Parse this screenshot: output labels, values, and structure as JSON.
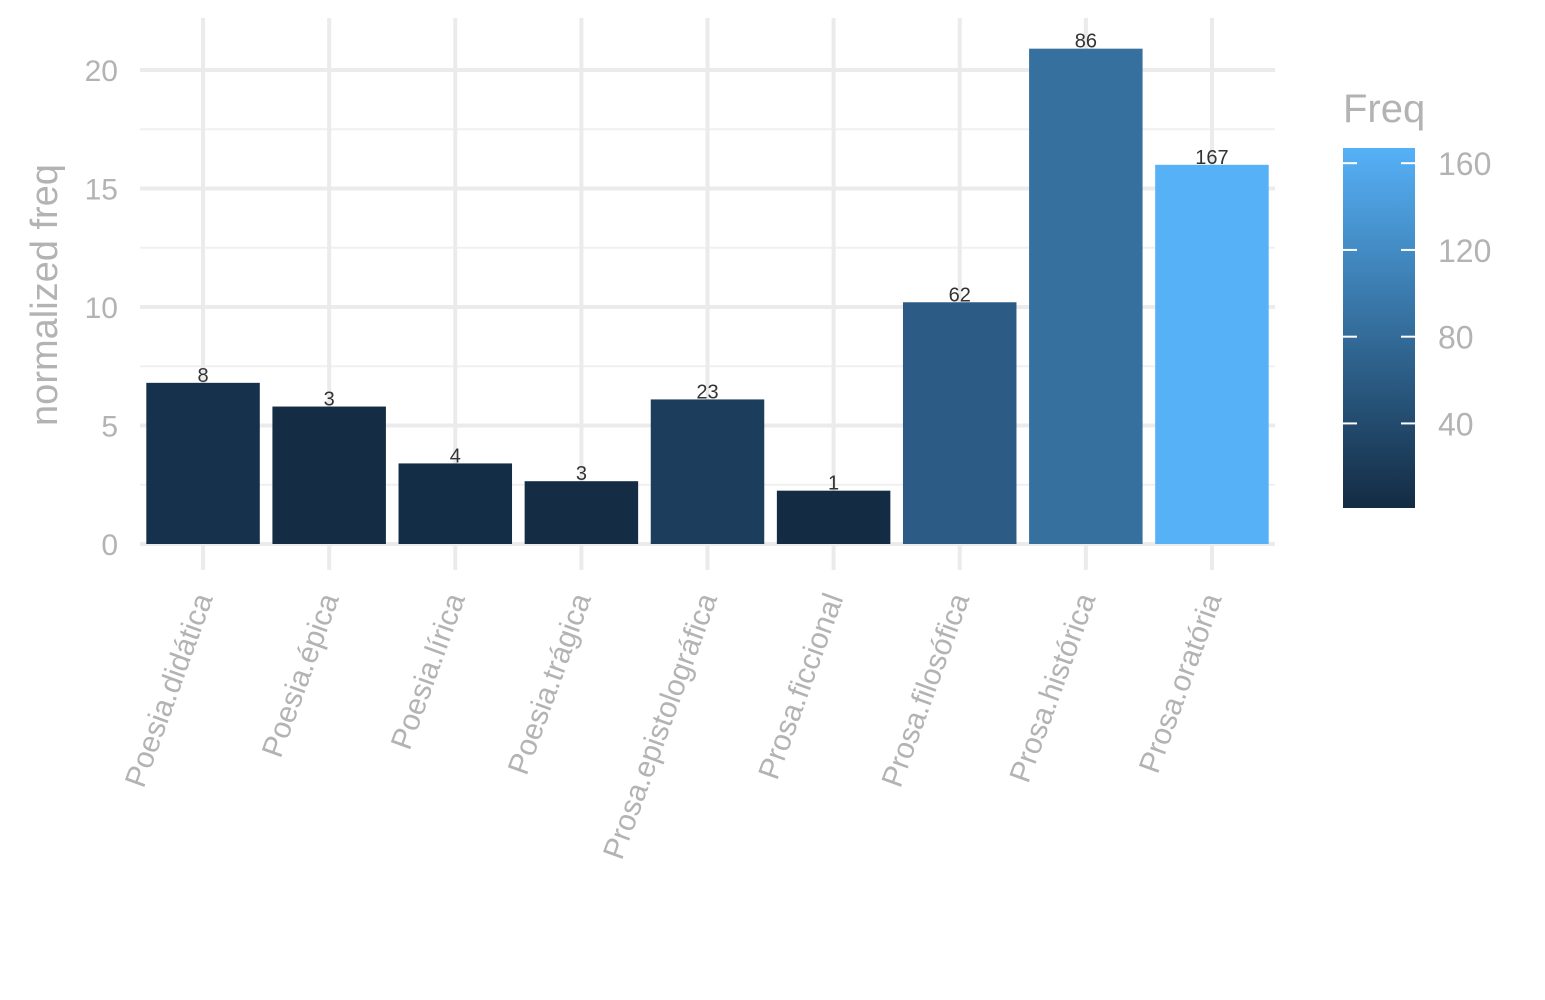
{
  "chart_data": {
    "type": "bar",
    "categories": [
      "Poesia.didática",
      "Poesia.épica",
      "Poesia.lírica",
      "Poesia.trágica",
      "Prosa.epistolográfica",
      "Prosa.ficcional",
      "Prosa.filosófica",
      "Prosa.histórica",
      "Prosa.oratória"
    ],
    "values": [
      6.8,
      5.8,
      3.4,
      2.65,
      6.1,
      2.25,
      10.2,
      20.9,
      16.0
    ],
    "bar_labels": [
      "8",
      "3",
      "4",
      "3",
      "23",
      "1",
      "62",
      "86",
      "167"
    ],
    "fill_values": [
      8,
      3,
      4,
      3,
      23,
      1,
      62,
      86,
      167
    ],
    "xlabel": "",
    "ylabel": "normalized freq",
    "ylim": [
      0,
      21.5
    ],
    "y_ticks": [
      0,
      5,
      10,
      15,
      20
    ],
    "grid": true,
    "legend": {
      "title": "Freq",
      "placement": "right",
      "ticks": [
        40,
        80,
        120,
        160
      ],
      "range": [
        1,
        167
      ],
      "color_low": "#132B43",
      "color_high": "#56B1F7"
    }
  }
}
